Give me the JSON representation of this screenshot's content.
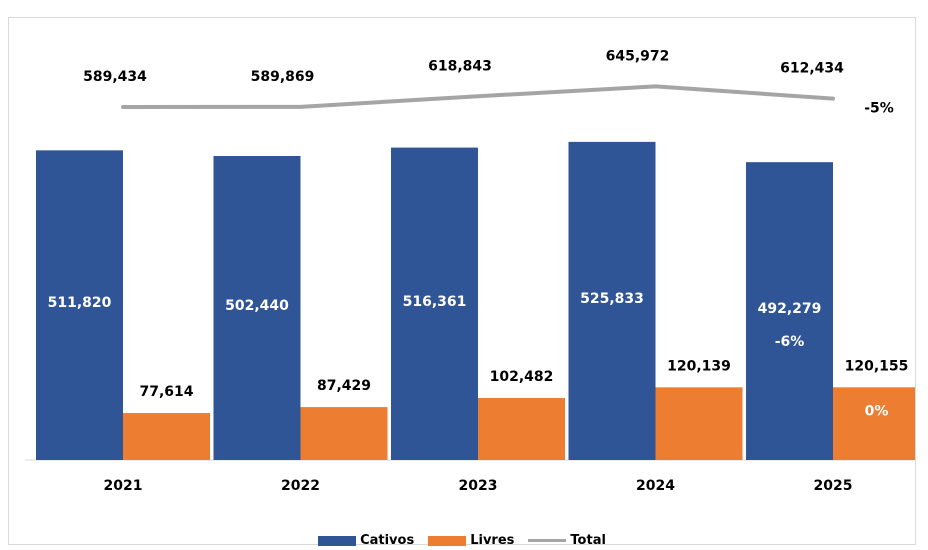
{
  "colors": {
    "cativos": "#2f5597",
    "livres": "#ed7d31",
    "total": "#a5a5a5",
    "inner_label": "#ffffff",
    "outer_label": "#000000"
  },
  "chart_data": {
    "type": "bar",
    "categories": [
      "2021",
      "2022",
      "2023",
      "2024",
      "2025"
    ],
    "series": [
      {
        "name": "Cativos",
        "type": "bar",
        "values": [
          511820,
          502440,
          516361,
          525833,
          492279
        ],
        "labels": [
          "511,820",
          "502,440",
          "516,361",
          "525,833",
          "492,279"
        ]
      },
      {
        "name": "Livres",
        "type": "bar",
        "values": [
          77614,
          87429,
          102482,
          120139,
          120155
        ],
        "labels": [
          "77,614",
          "87,429",
          "102,482",
          "120,139",
          "120,155"
        ]
      },
      {
        "name": "Total",
        "type": "line",
        "values": [
          589434,
          589869,
          618843,
          645972,
          612434
        ],
        "labels": [
          "589,434",
          "589,869",
          "618,843",
          "645,972",
          "612,434"
        ]
      }
    ],
    "annotations": {
      "cativos_change": "-6%",
      "livres_change": "0%",
      "total_change": "-5%"
    },
    "title": "",
    "xlabel": "",
    "ylabel": "",
    "grid": false,
    "legend_position": "bottom"
  }
}
